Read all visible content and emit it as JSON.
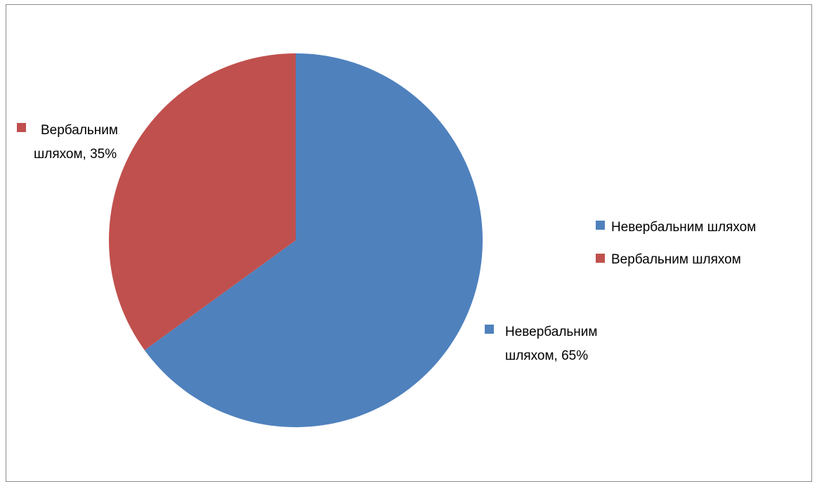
{
  "chart_data": {
    "type": "pie",
    "slices": [
      {
        "name": "Невербальним шляхом",
        "value": 65,
        "color": "#4F81BD",
        "label_line1": "Невербальним",
        "label_line2": "шляхом, 65%"
      },
      {
        "name": "Вербальним шляхом",
        "value": 35,
        "color": "#C0504D",
        "label_line1": "Вербальним",
        "label_line2": "шляхом, 35%"
      }
    ],
    "legend": {
      "position": "right",
      "items": [
        "Невербальним шляхом",
        "Вербальним шляхом"
      ]
    }
  }
}
